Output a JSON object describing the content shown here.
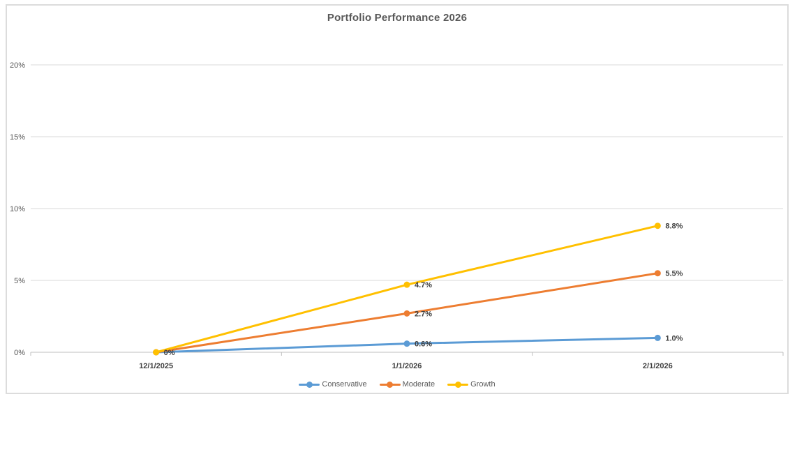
{
  "chart_data": {
    "type": "line",
    "title": "Portfolio Performance 2026",
    "categories": [
      "12/1/2025",
      "1/1/2026",
      "2/1/2026"
    ],
    "series": [
      {
        "name": "Conservative",
        "color": "#5B9BD5",
        "values": [
          0,
          0.6,
          1.0
        ],
        "point_labels": [
          "",
          "0.6%",
          "1.0%"
        ]
      },
      {
        "name": "Moderate",
        "color": "#ED7D31",
        "values": [
          0,
          2.7,
          5.5
        ],
        "point_labels": [
          "",
          "2.7%",
          "5.5%"
        ]
      },
      {
        "name": "Growth",
        "color": "#FFC000",
        "values": [
          0,
          4.7,
          8.8
        ],
        "point_labels": [
          "0%",
          "4.7%",
          "8.8%"
        ]
      }
    ],
    "xlabel": "",
    "ylabel": "",
    "y_axis": {
      "min": 0,
      "max": 20,
      "step": 5,
      "tick_labels": [
        "0%",
        "5%",
        "10%",
        "15%",
        "20%"
      ]
    },
    "grid": true,
    "legend_position": "bottom",
    "colors": {
      "gridline": "#D9D9D9",
      "axis_line": "#BFBFBF",
      "title_text": "#595959",
      "y_axis_text": "#595959",
      "x_axis_text": "#404040",
      "data_label_text": "#3F3F3F",
      "chart_border": "#DCDCDC",
      "background": "#FFFFFF"
    }
  }
}
